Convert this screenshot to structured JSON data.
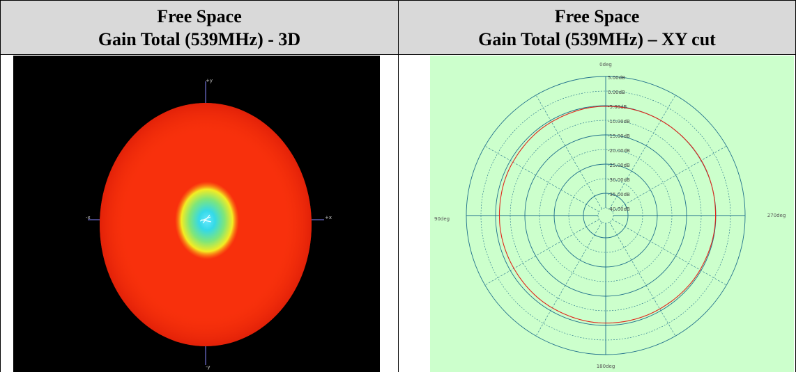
{
  "headers": {
    "left": {
      "line1": "Free Space",
      "line2": "Gain Total (539MHz) - 3D"
    },
    "right": {
      "line1": "Free Space",
      "line2": "Gain Total (539MHz) – XY cut"
    }
  },
  "colors": {
    "header_bg": "#d9d9d9",
    "panel3d_bg": "#000000",
    "polar_bg": "#ccffcc",
    "polar_grid": "#1f6f8b",
    "trace": "#e0261b",
    "axis_tick": "#8888ff"
  },
  "chart_data": [
    {
      "type": "3d-pattern",
      "title": "Gain Total (539MHz) - 3D",
      "axis_labels": {
        "top": "+y",
        "bottom": "-y",
        "left": "-x",
        "right": "+x"
      },
      "surface": "near-omnidirectional gain surface, red overall with yellow-green-cyan region near center"
    },
    {
      "type": "polar",
      "title": "Gain Total (539MHz) – XY cut",
      "angle_labels": {
        "top": "0deg",
        "left": "90deg",
        "right": "270deg",
        "bottom": "180deg"
      },
      "radial_ticks": [
        "5.00dB",
        "0.00dB",
        "-5.00dB",
        "-10.00dB",
        "-15.00dB",
        "-20.00dB",
        "-25.00dB",
        "-30.00dB",
        "-35.00dB",
        "-40.00dB"
      ],
      "radial_range_db": [
        -40,
        5
      ],
      "series": [
        {
          "angles_deg": [
            0,
            30,
            60,
            90,
            120,
            150,
            180,
            210,
            240,
            270,
            300,
            330
          ],
          "gain_db": [
            -5.2,
            -5.6,
            -6.0,
            -6.3,
            -6.4,
            -6.1,
            -5.8,
            -5.7,
            -5.4,
            -5.1,
            -4.9,
            -5.0
          ]
        }
      ]
    }
  ]
}
